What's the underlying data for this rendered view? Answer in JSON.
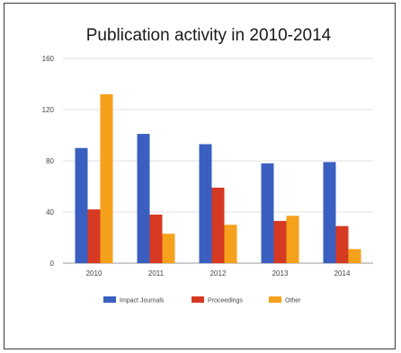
{
  "chart_data": {
    "type": "bar",
    "title": "Publication activity in 2010-2014",
    "xlabel": "",
    "ylabel": "",
    "categories": [
      "2010",
      "2011",
      "2012",
      "2013",
      "2014"
    ],
    "series": [
      {
        "name": "Impact Journals",
        "color": "#3a5fc0",
        "values": [
          90,
          101,
          93,
          78,
          79
        ]
      },
      {
        "name": "Proceedings",
        "color": "#d63a22",
        "values": [
          42,
          38,
          59,
          33,
          29
        ]
      },
      {
        "name": "Other",
        "color": "#f5a11c",
        "values": [
          132,
          23,
          30,
          37,
          11
        ]
      }
    ],
    "ylim": [
      0,
      160
    ],
    "yticks": [
      "0",
      "40",
      "80",
      "120",
      "160"
    ],
    "grid": true,
    "legend_position": "bottom"
  }
}
